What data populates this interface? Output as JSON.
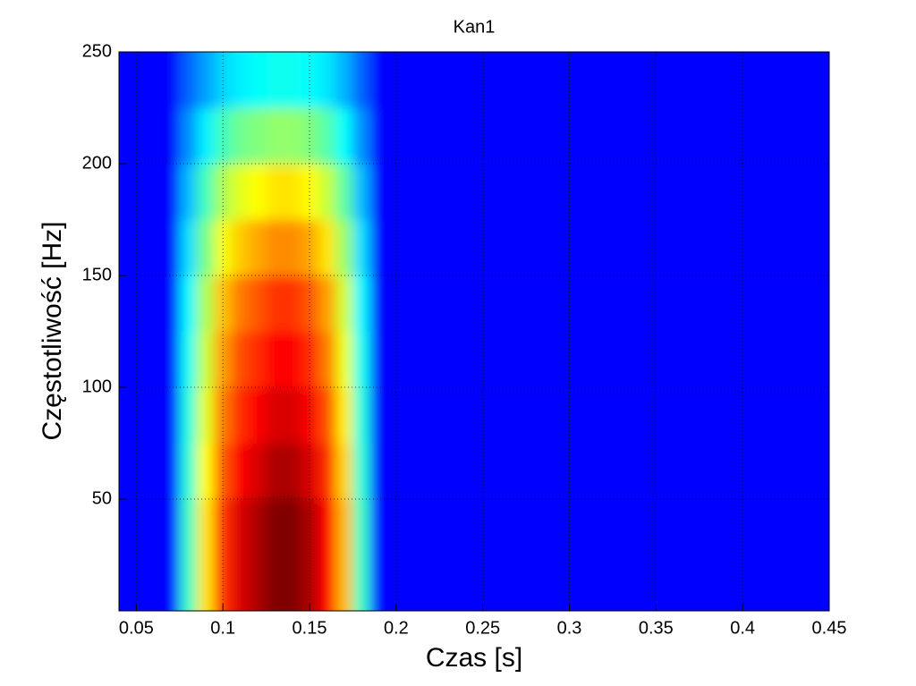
{
  "chart_data": {
    "type": "heatmap",
    "title": "Kan1",
    "x_label": "Czas [s]",
    "y_label": "Częstotliwość [Hz]",
    "x_edges": [
      0.04,
      0.075,
      0.085,
      0.095,
      0.105,
      0.115,
      0.125,
      0.135,
      0.145,
      0.155,
      0.165,
      0.175,
      0.185,
      0.45
    ],
    "y_edges": [
      0,
      25,
      50,
      75,
      100,
      125,
      150,
      175,
      200,
      225,
      250
    ],
    "values": [
      [
        0,
        0.35,
        0.6,
        0.8,
        0.9,
        0.95,
        1,
        1,
        0.95,
        0.85,
        0.65,
        0.35,
        0
      ],
      [
        0,
        0.35,
        0.6,
        0.8,
        0.9,
        0.95,
        1,
        1,
        0.95,
        0.85,
        0.65,
        0.35,
        0
      ],
      [
        0,
        0.33,
        0.57,
        0.76,
        0.86,
        0.9,
        0.95,
        0.95,
        0.9,
        0.81,
        0.62,
        0.33,
        0
      ],
      [
        0,
        0.32,
        0.54,
        0.72,
        0.81,
        0.86,
        0.9,
        0.9,
        0.86,
        0.77,
        0.59,
        0.32,
        0
      ],
      [
        0,
        0.3,
        0.51,
        0.68,
        0.77,
        0.81,
        0.85,
        0.85,
        0.81,
        0.72,
        0.55,
        0.3,
        0
      ],
      [
        0,
        0.28,
        0.48,
        0.64,
        0.72,
        0.76,
        0.8,
        0.8,
        0.76,
        0.68,
        0.52,
        0.28,
        0
      ],
      [
        0,
        0.25,
        0.42,
        0.56,
        0.63,
        0.67,
        0.7,
        0.7,
        0.67,
        0.6,
        0.46,
        0.25,
        0
      ],
      [
        0,
        0.21,
        0.36,
        0.48,
        0.54,
        0.57,
        0.6,
        0.6,
        0.57,
        0.51,
        0.39,
        0.21,
        0
      ],
      [
        0,
        0.16,
        0.27,
        0.36,
        0.41,
        0.43,
        0.45,
        0.45,
        0.43,
        0.38,
        0.29,
        0.16,
        0
      ],
      [
        0,
        0.11,
        0.18,
        0.24,
        0.27,
        0.29,
        0.3,
        0.3,
        0.29,
        0.26,
        0.2,
        0.11,
        0
      ]
    ],
    "xlim": [
      0.04,
      0.45
    ],
    "ylim": [
      0,
      250
    ],
    "xticks": [
      0.05,
      0.1,
      0.15,
      0.2,
      0.25,
      0.3,
      0.35,
      0.4,
      0.45
    ],
    "yticks": [
      50,
      100,
      150,
      200,
      250
    ],
    "grid": true
  }
}
